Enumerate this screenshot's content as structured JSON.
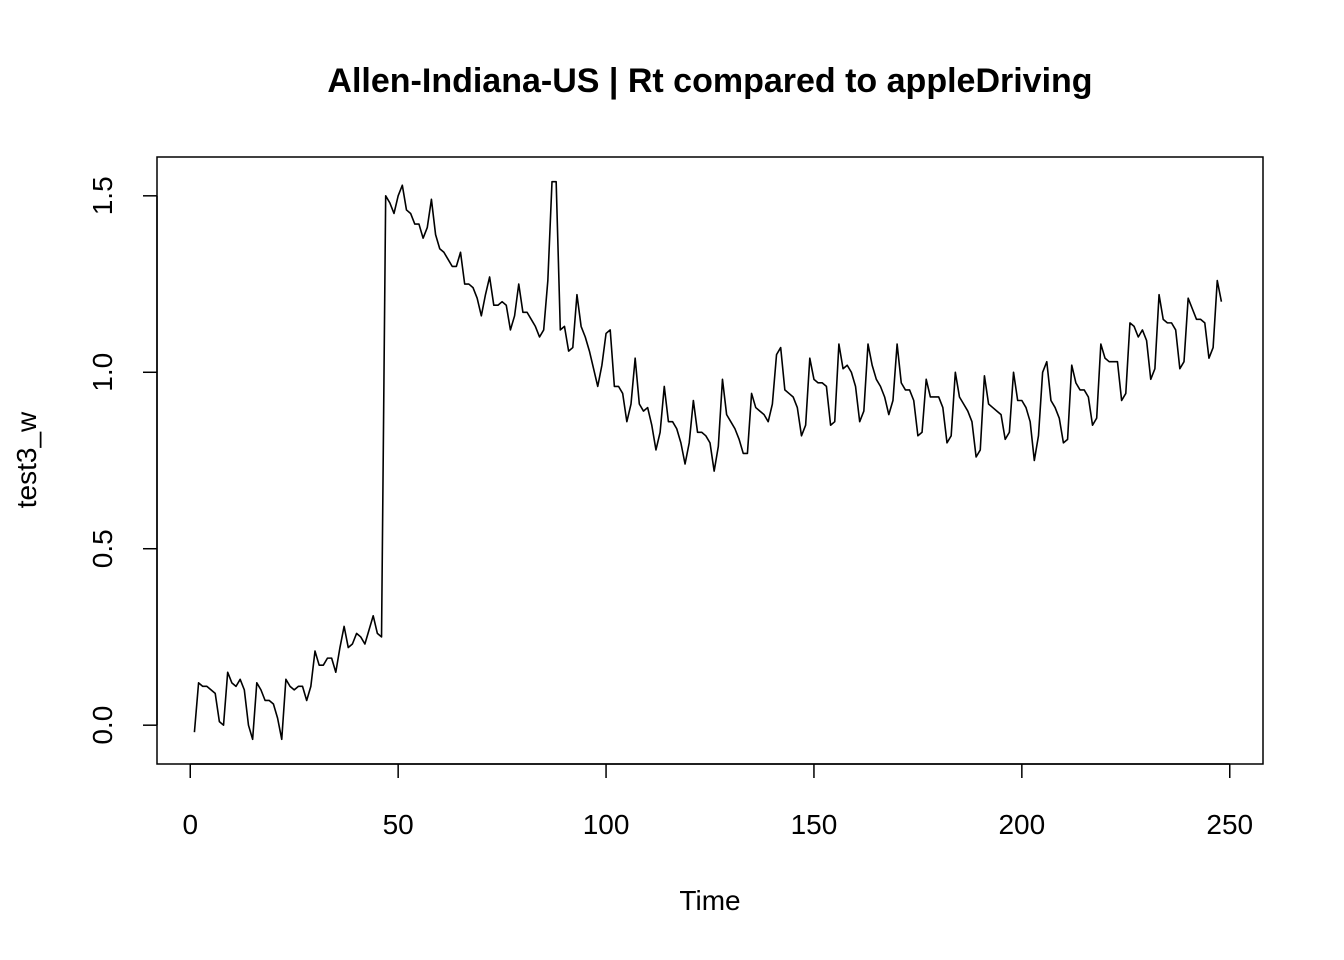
{
  "chart_data": {
    "type": "line",
    "title": "Allen-Indiana-US | Rt compared to appleDriving",
    "xlabel": "Time",
    "ylabel": "test3_w",
    "xlim": [
      -8,
      258
    ],
    "ylim": [
      -0.11,
      1.61
    ],
    "x_ticks": [
      0,
      50,
      100,
      150,
      200,
      250
    ],
    "x_tick_labels": [
      "0",
      "50",
      "100",
      "150",
      "200",
      "250"
    ],
    "y_ticks": [
      0.0,
      0.5,
      1.0,
      1.5
    ],
    "y_tick_labels": [
      "0.0",
      "0.5",
      "1.0",
      "1.5"
    ],
    "grid": false,
    "legend": "none",
    "line_color": "#000000",
    "series": [
      {
        "x_start": 1,
        "values": [
          -0.02,
          0.12,
          0.11,
          0.11,
          0.1,
          0.09,
          0.01,
          0.0,
          0.15,
          0.12,
          0.11,
          0.13,
          0.1,
          0.0,
          -0.04,
          0.12,
          0.1,
          0.07,
          0.07,
          0.06,
          0.02,
          -0.04,
          0.13,
          0.11,
          0.1,
          0.11,
          0.11,
          0.07,
          0.11,
          0.21,
          0.17,
          0.17,
          0.19,
          0.19,
          0.15,
          0.22,
          0.28,
          0.22,
          0.23,
          0.26,
          0.25,
          0.23,
          0.27,
          0.31,
          0.26,
          0.25,
          1.5,
          1.48,
          1.45,
          1.5,
          1.53,
          1.46,
          1.45,
          1.42,
          1.42,
          1.38,
          1.41,
          1.49,
          1.39,
          1.35,
          1.34,
          1.32,
          1.3,
          1.3,
          1.34,
          1.25,
          1.25,
          1.24,
          1.21,
          1.16,
          1.22,
          1.27,
          1.19,
          1.19,
          1.2,
          1.19,
          1.12,
          1.16,
          1.25,
          1.17,
          1.17,
          1.15,
          1.13,
          1.1,
          1.12,
          1.26,
          1.54,
          1.54,
          1.12,
          1.13,
          1.06,
          1.07,
          1.22,
          1.13,
          1.1,
          1.06,
          1.01,
          0.96,
          1.02,
          1.11,
          1.12,
          0.96,
          0.96,
          0.94,
          0.86,
          0.91,
          1.04,
          0.91,
          0.89,
          0.9,
          0.85,
          0.78,
          0.83,
          0.96,
          0.86,
          0.86,
          0.84,
          0.8,
          0.74,
          0.8,
          0.92,
          0.83,
          0.83,
          0.82,
          0.8,
          0.72,
          0.79,
          0.98,
          0.88,
          0.86,
          0.84,
          0.81,
          0.77,
          0.77,
          0.94,
          0.9,
          0.89,
          0.88,
          0.86,
          0.91,
          1.05,
          1.07,
          0.95,
          0.94,
          0.93,
          0.9,
          0.82,
          0.85,
          1.04,
          0.98,
          0.97,
          0.97,
          0.96,
          0.85,
          0.86,
          1.08,
          1.01,
          1.02,
          1.0,
          0.96,
          0.86,
          0.89,
          1.08,
          1.02,
          0.98,
          0.96,
          0.93,
          0.88,
          0.92,
          1.08,
          0.97,
          0.95,
          0.95,
          0.92,
          0.82,
          0.83,
          0.98,
          0.93,
          0.93,
          0.93,
          0.9,
          0.8,
          0.82,
          1.0,
          0.93,
          0.91,
          0.89,
          0.86,
          0.76,
          0.78,
          0.99,
          0.91,
          0.9,
          0.89,
          0.88,
          0.81,
          0.83,
          1.0,
          0.92,
          0.92,
          0.9,
          0.86,
          0.75,
          0.82,
          1.0,
          1.03,
          0.92,
          0.9,
          0.87,
          0.8,
          0.81,
          1.02,
          0.97,
          0.95,
          0.95,
          0.93,
          0.85,
          0.87,
          1.08,
          1.04,
          1.03,
          1.03,
          1.03,
          0.92,
          0.94,
          1.14,
          1.13,
          1.1,
          1.12,
          1.09,
          0.98,
          1.01,
          1.22,
          1.15,
          1.14,
          1.14,
          1.12,
          1.01,
          1.03,
          1.21,
          1.18,
          1.15,
          1.15,
          1.14,
          1.04,
          1.07,
          1.26,
          1.2
        ]
      }
    ]
  }
}
